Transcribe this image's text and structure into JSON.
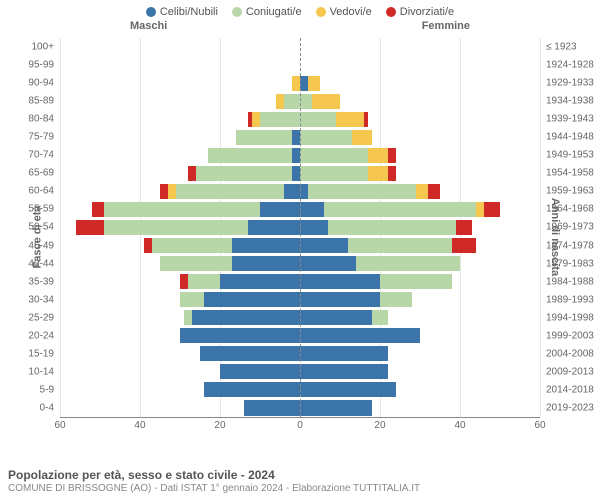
{
  "legend": [
    {
      "label": "Celibi/Nubili",
      "color": "#3b74a8"
    },
    {
      "label": "Coniugati/e",
      "color": "#b7d7a8"
    },
    {
      "label": "Vedovi/e",
      "color": "#f6c74f"
    },
    {
      "label": "Divorziati/e",
      "color": "#cf2a27"
    }
  ],
  "headers": {
    "male": "Maschi",
    "female": "Femmine"
  },
  "axis_titles": {
    "left": "Fasce di età",
    "right": "Anni di nascita"
  },
  "footer": {
    "title": "Popolazione per età, sesso e stato civile - 2024",
    "sub": "COMUNE DI BRISSOGNE (AO) - Dati ISTAT 1° gennaio 2024 - Elaborazione TUTTITALIA.IT"
  },
  "chart": {
    "type": "population-pyramid",
    "x_max": 60,
    "x_ticks": [
      60,
      40,
      20,
      0,
      20,
      40,
      60
    ],
    "background_color": "#ffffff",
    "grid_color": "#e5e5e5",
    "centerline_color": "#888888",
    "segment_keys": [
      "single",
      "married",
      "widowed",
      "divorced"
    ],
    "segment_colors": {
      "single": "#3b74a8",
      "married": "#b7d7a8",
      "widowed": "#f6c74f",
      "divorced": "#cf2a27"
    },
    "rows": [
      {
        "age": "100+",
        "birth": "≤ 1923",
        "m": {
          "single": 0,
          "married": 0,
          "widowed": 0,
          "divorced": 0
        },
        "f": {
          "single": 0,
          "married": 0,
          "widowed": 0,
          "divorced": 0
        }
      },
      {
        "age": "95-99",
        "birth": "1924-1928",
        "m": {
          "single": 0,
          "married": 0,
          "widowed": 0,
          "divorced": 0
        },
        "f": {
          "single": 0,
          "married": 0,
          "widowed": 0,
          "divorced": 0
        }
      },
      {
        "age": "90-94",
        "birth": "1929-1933",
        "m": {
          "single": 0,
          "married": 0,
          "widowed": 2,
          "divorced": 0
        },
        "f": {
          "single": 2,
          "married": 0,
          "widowed": 3,
          "divorced": 0
        }
      },
      {
        "age": "85-89",
        "birth": "1934-1938",
        "m": {
          "single": 0,
          "married": 4,
          "widowed": 2,
          "divorced": 0
        },
        "f": {
          "single": 0,
          "married": 3,
          "widowed": 7,
          "divorced": 0
        }
      },
      {
        "age": "80-84",
        "birth": "1939-1943",
        "m": {
          "single": 0,
          "married": 10,
          "widowed": 2,
          "divorced": 1
        },
        "f": {
          "single": 0,
          "married": 9,
          "widowed": 7,
          "divorced": 1
        }
      },
      {
        "age": "75-79",
        "birth": "1944-1948",
        "m": {
          "single": 2,
          "married": 14,
          "widowed": 0,
          "divorced": 0
        },
        "f": {
          "single": 0,
          "married": 13,
          "widowed": 5,
          "divorced": 0
        }
      },
      {
        "age": "70-74",
        "birth": "1949-1953",
        "m": {
          "single": 2,
          "married": 21,
          "widowed": 0,
          "divorced": 0
        },
        "f": {
          "single": 0,
          "married": 17,
          "widowed": 5,
          "divorced": 2
        }
      },
      {
        "age": "65-69",
        "birth": "1954-1958",
        "m": {
          "single": 2,
          "married": 24,
          "widowed": 0,
          "divorced": 2
        },
        "f": {
          "single": 0,
          "married": 17,
          "widowed": 5,
          "divorced": 2
        }
      },
      {
        "age": "60-64",
        "birth": "1959-1963",
        "m": {
          "single": 4,
          "married": 27,
          "widowed": 2,
          "divorced": 2
        },
        "f": {
          "single": 2,
          "married": 27,
          "widowed": 3,
          "divorced": 3
        }
      },
      {
        "age": "55-59",
        "birth": "1964-1968",
        "m": {
          "single": 10,
          "married": 39,
          "widowed": 0,
          "divorced": 3
        },
        "f": {
          "single": 6,
          "married": 38,
          "widowed": 2,
          "divorced": 4
        }
      },
      {
        "age": "50-54",
        "birth": "1969-1973",
        "m": {
          "single": 13,
          "married": 36,
          "widowed": 0,
          "divorced": 7
        },
        "f": {
          "single": 7,
          "married": 32,
          "widowed": 0,
          "divorced": 4
        }
      },
      {
        "age": "45-49",
        "birth": "1974-1978",
        "m": {
          "single": 17,
          "married": 20,
          "widowed": 0,
          "divorced": 2
        },
        "f": {
          "single": 12,
          "married": 26,
          "widowed": 0,
          "divorced": 6
        }
      },
      {
        "age": "40-44",
        "birth": "1979-1983",
        "m": {
          "single": 17,
          "married": 18,
          "widowed": 0,
          "divorced": 0
        },
        "f": {
          "single": 14,
          "married": 26,
          "widowed": 0,
          "divorced": 0
        }
      },
      {
        "age": "35-39",
        "birth": "1984-1988",
        "m": {
          "single": 20,
          "married": 8,
          "widowed": 0,
          "divorced": 2
        },
        "f": {
          "single": 20,
          "married": 18,
          "widowed": 0,
          "divorced": 0
        }
      },
      {
        "age": "30-34",
        "birth": "1989-1993",
        "m": {
          "single": 24,
          "married": 6,
          "widowed": 0,
          "divorced": 0
        },
        "f": {
          "single": 20,
          "married": 8,
          "widowed": 0,
          "divorced": 0
        }
      },
      {
        "age": "25-29",
        "birth": "1994-1998",
        "m": {
          "single": 27,
          "married": 2,
          "widowed": 0,
          "divorced": 0
        },
        "f": {
          "single": 18,
          "married": 4,
          "widowed": 0,
          "divorced": 0
        }
      },
      {
        "age": "20-24",
        "birth": "1999-2003",
        "m": {
          "single": 30,
          "married": 0,
          "widowed": 0,
          "divorced": 0
        },
        "f": {
          "single": 30,
          "married": 0,
          "widowed": 0,
          "divorced": 0
        }
      },
      {
        "age": "15-19",
        "birth": "2004-2008",
        "m": {
          "single": 25,
          "married": 0,
          "widowed": 0,
          "divorced": 0
        },
        "f": {
          "single": 22,
          "married": 0,
          "widowed": 0,
          "divorced": 0
        }
      },
      {
        "age": "10-14",
        "birth": "2009-2013",
        "m": {
          "single": 20,
          "married": 0,
          "widowed": 0,
          "divorced": 0
        },
        "f": {
          "single": 22,
          "married": 0,
          "widowed": 0,
          "divorced": 0
        }
      },
      {
        "age": "5-9",
        "birth": "2014-2018",
        "m": {
          "single": 24,
          "married": 0,
          "widowed": 0,
          "divorced": 0
        },
        "f": {
          "single": 24,
          "married": 0,
          "widowed": 0,
          "divorced": 0
        }
      },
      {
        "age": "0-4",
        "birth": "2019-2023",
        "m": {
          "single": 14,
          "married": 0,
          "widowed": 0,
          "divorced": 0
        },
        "f": {
          "single": 18,
          "married": 0,
          "widowed": 0,
          "divorced": 0
        }
      }
    ]
  }
}
